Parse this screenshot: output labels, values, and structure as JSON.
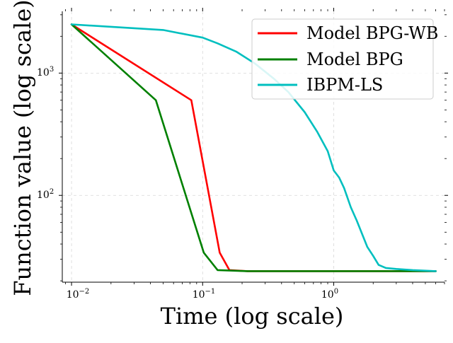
{
  "chart_data": {
    "type": "line",
    "title": "",
    "xlabel": "Time (log scale)",
    "ylabel": "Function value (log scale)",
    "xscale": "log",
    "yscale": "log",
    "xlim": [
      0.0085,
      7.0
    ],
    "ylim": [
      19.5,
      3200
    ],
    "grid": true,
    "legend_position": "top-right",
    "x_tick_labels": [
      {
        "value": 0.01,
        "base": "10",
        "exp": "−2"
      },
      {
        "value": 0.1,
        "base": "10",
        "exp": "−1"
      },
      {
        "value": 1,
        "base": "10",
        "exp": "0"
      }
    ],
    "y_tick_labels": [
      {
        "value": 100,
        "base": "10",
        "exp": "2"
      },
      {
        "value": 1000,
        "base": "10",
        "exp": "3"
      }
    ],
    "series": [
      {
        "name": "Model BPG-WB",
        "color": "#ff0000",
        "x": [
          0.01,
          0.082,
          0.135,
          0.16,
          0.22,
          6.0
        ],
        "y": [
          2500,
          600,
          34,
          24.5,
          24,
          24
        ]
      },
      {
        "name": "Model BPG",
        "color": "#008000",
        "x": [
          0.01,
          0.044,
          0.102,
          0.13,
          0.22,
          6.0
        ],
        "y": [
          2500,
          600,
          34,
          24.5,
          24,
          24
        ]
      },
      {
        "name": "IBPM-LS",
        "color": "#00bfbf",
        "x": [
          0.01,
          0.05,
          0.1,
          0.13,
          0.18,
          0.25,
          0.35,
          0.45,
          0.6,
          0.75,
          0.9,
          1.0,
          1.1,
          1.2,
          1.35,
          1.5,
          1.65,
          1.8,
          2.0,
          2.2,
          2.5,
          3.0,
          4.0,
          6.0
        ],
        "y": [
          2500,
          2250,
          1950,
          1750,
          1500,
          1200,
          900,
          700,
          480,
          330,
          230,
          160,
          140,
          115,
          80,
          62,
          48,
          38,
          32,
          27,
          25.5,
          25,
          24.5,
          24
        ]
      }
    ]
  }
}
